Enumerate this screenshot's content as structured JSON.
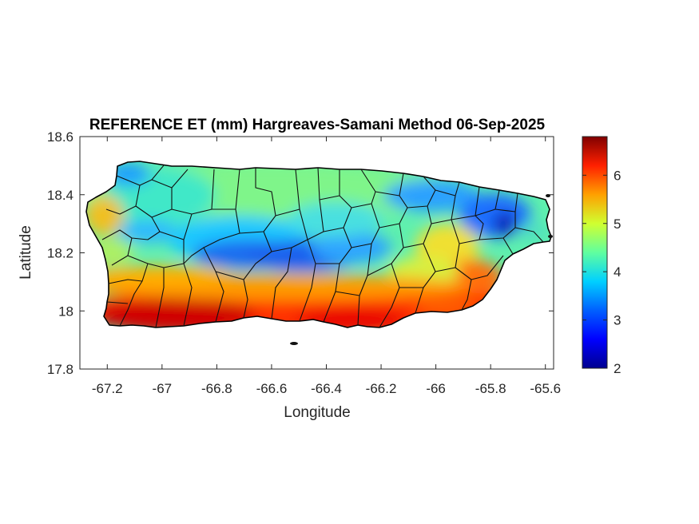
{
  "figure": {
    "title": "REFERENCE ET (mm) Hargreaves-Samani Method  06-Sep-2025",
    "xlabel": "Longitude",
    "ylabel": "Latitude"
  },
  "map": {
    "region": "Puerto Rico",
    "lon_range": [
      -67.3,
      -65.57
    ],
    "lat_range": [
      17.8,
      18.6
    ],
    "x_ticks": [
      "-67.2",
      "-67",
      "-66.8",
      "-66.6",
      "-66.4",
      "-66.2",
      "-66",
      "-65.8",
      "-65.6"
    ],
    "y_ticks": [
      "18.6",
      "18.4",
      "18.2",
      "18",
      "17.8"
    ],
    "x_tick_values": [
      -67.2,
      -67,
      -66.8,
      -66.6,
      -66.4,
      -66.2,
      -66,
      -65.8,
      -65.6
    ],
    "y_tick_values": [
      18.6,
      18.4,
      18.2,
      18.0,
      17.8
    ],
    "pattern": "low ET (blue) across the central mountains and northeast, high ET (red) along the southern coast",
    "boundaries": "municipality outlines"
  },
  "colorbar": {
    "colormap": "jet",
    "range": [
      2,
      6.8
    ],
    "ticks": [
      "6",
      "5",
      "4",
      "3",
      "2"
    ],
    "tick_values": [
      6,
      5,
      4,
      3,
      2
    ],
    "colors": [
      "#00008f",
      "#0000ff",
      "#0080ff",
      "#00ffff",
      "#80ff80",
      "#ffff00",
      "#ff8000",
      "#ff0000",
      "#800000"
    ]
  }
}
